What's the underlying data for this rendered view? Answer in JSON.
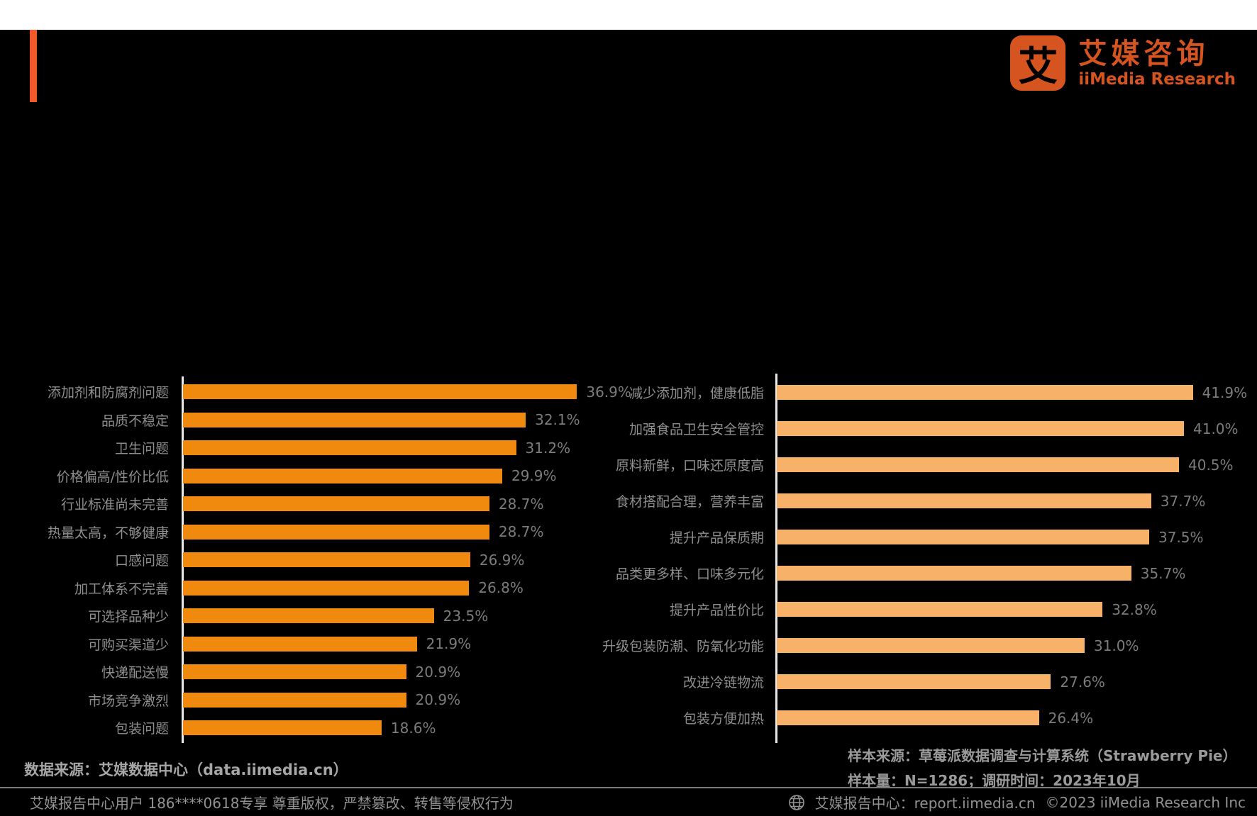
{
  "brand": {
    "logo_mark_char": "艾",
    "logo_name_zh": "艾媒咨询",
    "logo_name_en": "iiMedia Research",
    "accent_color": "#F2592B",
    "logo_color": "#D6541F"
  },
  "chart_data": [
    {
      "type": "bar",
      "orientation": "horizontal",
      "unit": "%",
      "bar_color": "#F08A0E",
      "label_color": "#8F8F8F",
      "value_color": "#7C7C7C",
      "xlim": [
        0,
        40
      ],
      "legend": "none",
      "grid": false,
      "categories": [
        "添加剂和防腐剂问题",
        "品质不稳定",
        "卫生问题",
        "价格偏高/性价比低",
        "行业标准尚未完善",
        "热量太高，不够健康",
        "口感问题",
        "加工体系不完善",
        "可选择品种少",
        "可购买渠道少",
        "快递配送慢",
        "市场竞争激烈",
        "包装问题"
      ],
      "values": [
        36.9,
        32.1,
        31.2,
        29.9,
        28.7,
        28.7,
        26.9,
        26.8,
        23.5,
        21.9,
        20.9,
        20.9,
        18.6
      ]
    },
    {
      "type": "bar",
      "orientation": "horizontal",
      "unit": "%",
      "bar_color": "#F8B168",
      "label_color": "#8F8F8F",
      "value_color": "#7C7C7C",
      "xlim": [
        0,
        45
      ],
      "legend": "none",
      "grid": false,
      "categories": [
        "减少添加剂，健康低脂",
        "加强食品卫生安全管控",
        "原料新鲜，口味还原度高",
        "食材搭配合理，营养丰富",
        "提升产品保质期",
        "品类更多样、口味多元化",
        "提升产品性价比",
        "升级包装防潮、防氧化功能",
        "改进冷链物流",
        "包装方便加热"
      ],
      "values": [
        41.9,
        41.0,
        40.5,
        37.7,
        37.5,
        35.7,
        32.8,
        31.0,
        27.6,
        26.4
      ]
    }
  ],
  "sources": {
    "data_source": "数据来源：艾媒数据中心（data.iimedia.cn）",
    "sample_source": "样本来源：草莓派数据调查与计算系统（Strawberry Pie）",
    "sample_info": "样本量：N=1286；调研时间：2023年10月"
  },
  "footer": {
    "user_notice": "艾媒报告中心用户 186****0618专享 尊重版权，严禁篡改、转售等侵权行为",
    "portal": "艾媒报告中心：report.iimedia.cn",
    "copyright": "©2023  iiMedia Research Inc"
  }
}
